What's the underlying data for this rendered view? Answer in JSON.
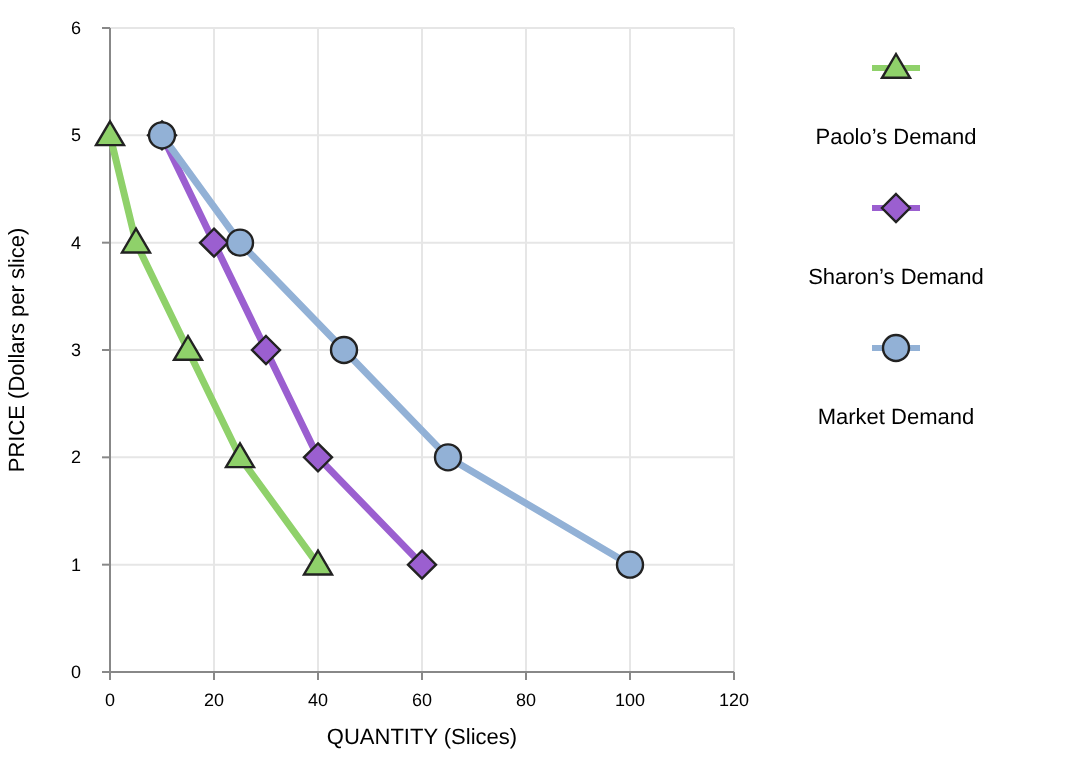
{
  "chart_data": {
    "type": "line",
    "xlabel": "QUANTITY (Slices)",
    "ylabel": "PRICE (Dollars per slice)",
    "xlim": [
      0,
      120
    ],
    "xticks": [
      0,
      20,
      40,
      60,
      80,
      100,
      120
    ],
    "ylim": [
      0,
      6
    ],
    "yticks": [
      0,
      1,
      2,
      3,
      4,
      5,
      6
    ],
    "grid": true,
    "legend": "right",
    "line_style": "solid",
    "series": [
      {
        "name": "Paolo’s Demand",
        "color": "#8fd16a",
        "marker": "triangle",
        "x": [
          0,
          5,
          15,
          25,
          40
        ],
        "values": [
          5,
          4,
          3,
          2,
          1
        ]
      },
      {
        "name": "Sharon’s Demand",
        "color": "#9b5fd0",
        "marker": "diamond",
        "x": [
          10,
          20,
          30,
          40,
          60
        ],
        "values": [
          5,
          4,
          3,
          2,
          1
        ]
      },
      {
        "name": "Market Demand",
        "color": "#92b1d6",
        "marker": "circle",
        "x": [
          10,
          25,
          45,
          65,
          100
        ],
        "values": [
          5,
          4,
          3,
          2,
          1
        ]
      }
    ]
  }
}
